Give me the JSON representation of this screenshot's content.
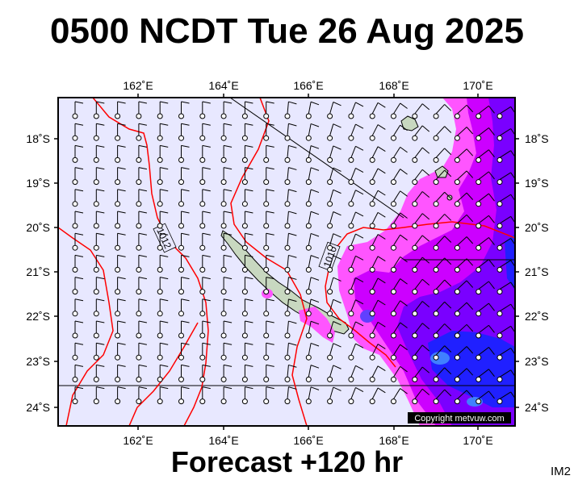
{
  "title": "0500 NCDT Tue 26 Aug 2025",
  "footer": "Forecast +120 hr",
  "tag": "IM2",
  "copyright": "Copyright metvuw.com",
  "lon_labels": [
    "162˚E",
    "164˚E",
    "166˚E",
    "168˚E",
    "170˚E"
  ],
  "lat_labels": [
    "18˚S",
    "19˚S",
    "20˚S",
    "21˚S",
    "22˚S",
    "23˚S",
    "24˚S"
  ],
  "isobar_labels": [
    "1012",
    "1010"
  ],
  "colors": {
    "background": "#e8e8ff",
    "isobar": "#ff0000",
    "land": "#c8d8c0",
    "wind_light": "#ff55ff",
    "wind_mid": "#cc00ff",
    "wind_strong": "#7a00ff",
    "wind_max": "#2020ff"
  }
}
